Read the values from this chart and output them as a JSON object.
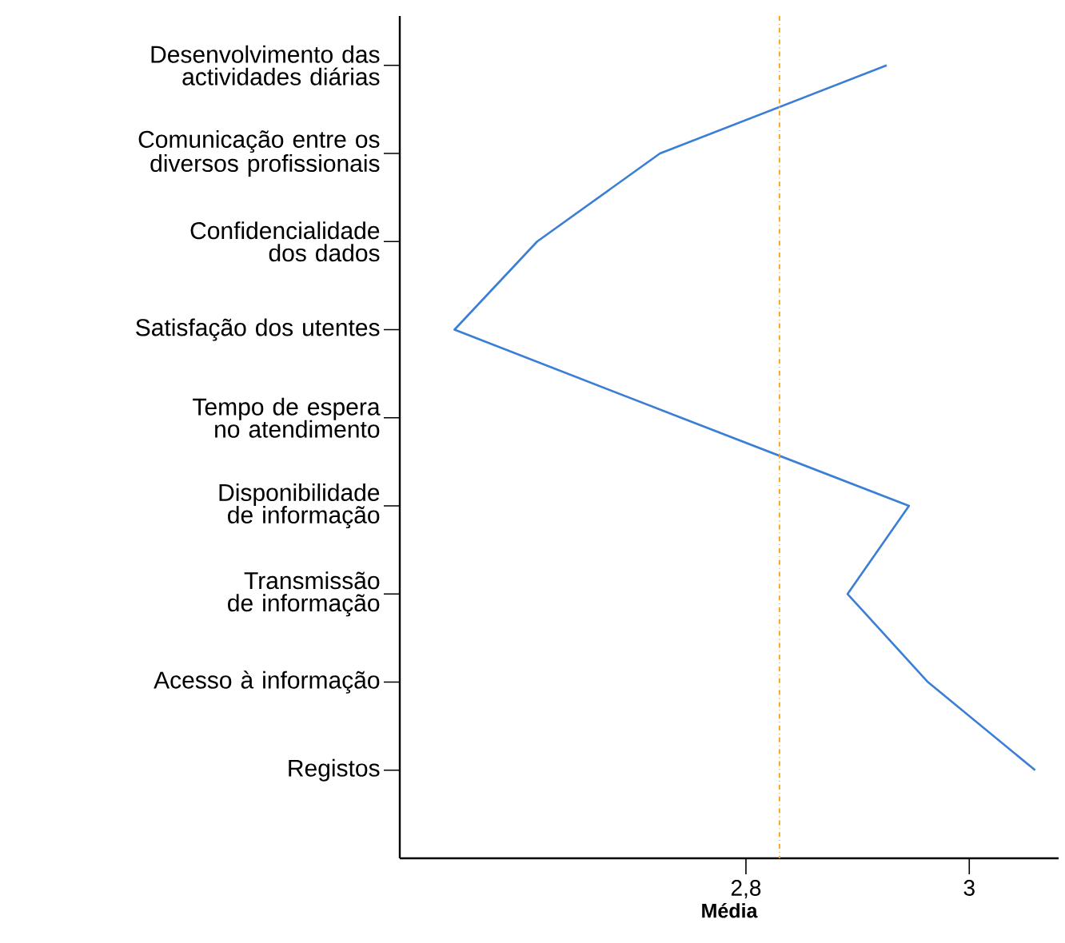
{
  "chart_data": {
    "type": "line",
    "orientation": "horizontal",
    "xlabel": "Média",
    "categories": [
      "Desenvolvimento das actividades diárias",
      "Comunicação entre os diversos profissionais",
      "Confidencialidade dos dados",
      "Satisfação dos utentes",
      "Tempo de espera no atendimento",
      "Disponibilidade de informação",
      "Transmissão de informação",
      "Acesso à informação",
      "Registos"
    ],
    "values": [
      2.926,
      2.723,
      2.613,
      2.539,
      2.742,
      2.946,
      2.891,
      2.963,
      3.059
    ],
    "color": "#3a7fd5",
    "xlim": [
      2.49,
      3.08
    ],
    "xticks": [
      {
        "value": 2.8,
        "label": "2,8"
      },
      {
        "value": 3,
        "label": "3"
      }
    ],
    "ref_lines": [
      {
        "axis": "x",
        "value": 2.83,
        "color": "#f5a623",
        "line_style": "dashdot"
      }
    ],
    "grid": false,
    "marker": "none",
    "line_style": "solid"
  }
}
